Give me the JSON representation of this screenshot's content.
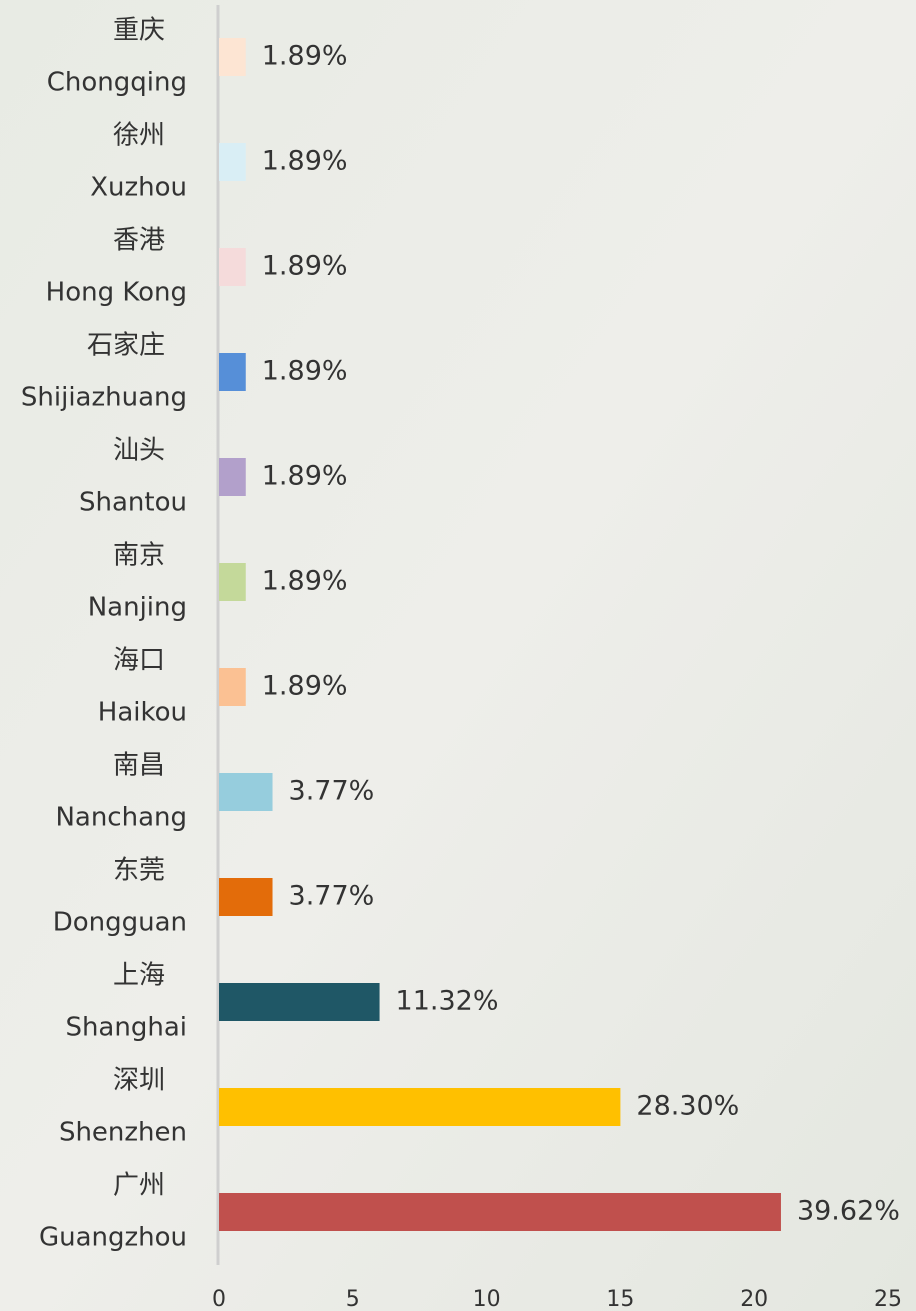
{
  "chart_data": {
    "type": "barh",
    "categories": [
      "Chongqing",
      "Xuzhou",
      "Hong Kong",
      "Shijiazhuang",
      "Shantou",
      "Nanjing",
      "Haikou",
      "Nanchang",
      "Dongguan",
      "Shanghai",
      "Shenzhen",
      "Guangzhou"
    ],
    "categories_zh": [
      "重庆",
      "徐州",
      "香港",
      "石家庄",
      "汕头",
      "南京",
      "海口",
      "南昌",
      "东莞",
      "上海",
      "深圳",
      "广州"
    ],
    "values": [
      1,
      1,
      1,
      1,
      1,
      1,
      1,
      2,
      2,
      6,
      15,
      21
    ],
    "share_labels": [
      "1.89%",
      "1.89%",
      "1.89%",
      "1.89%",
      "1.89%",
      "1.89%",
      "1.89%",
      "3.77%",
      "3.77%",
      "11.32%",
      "28.30%",
      "39.62%"
    ],
    "colors": [
      "#fde5d3",
      "#d9eef5",
      "#f5dbdb",
      "#568fd8",
      "#b2a0cb",
      "#c4d99a",
      "#fbc193",
      "#96cddd",
      "#e36c0a",
      "#1f5766",
      "#ffc000",
      "#c0504d"
    ],
    "xlim": [
      0,
      25
    ],
    "xticks": [
      0,
      5,
      10,
      15,
      20,
      25
    ]
  }
}
